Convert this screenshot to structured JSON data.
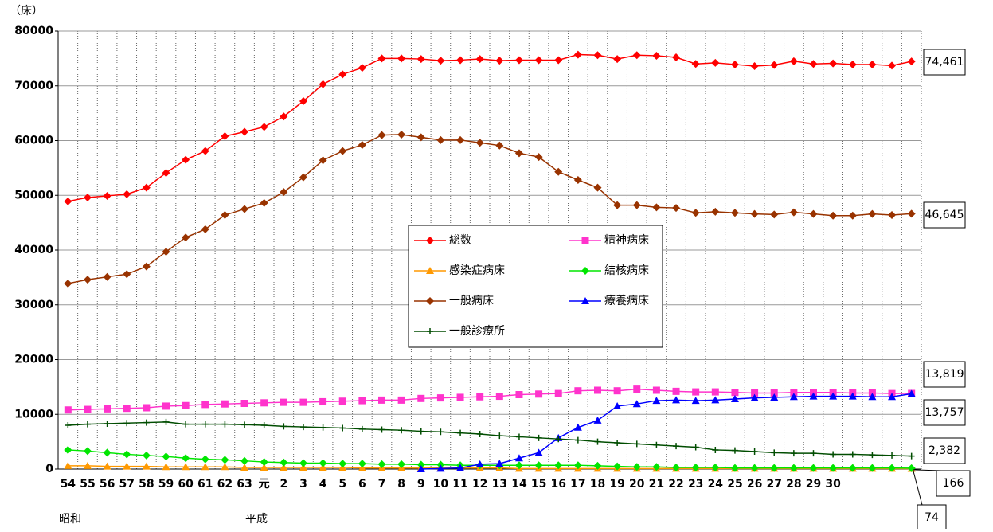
{
  "chart_data": {
    "type": "line",
    "y_label": "（床）",
    "era_labels": [
      "昭和",
      "平成"
    ],
    "categories": [
      "54",
      "55",
      "56",
      "57",
      "58",
      "59",
      "60",
      "61",
      "62",
      "63",
      "元",
      "2",
      "3",
      "4",
      "5",
      "6",
      "7",
      "8",
      "9",
      "10",
      "11",
      "12",
      "13",
      "14",
      "15",
      "16",
      "17",
      "18",
      "19",
      "20",
      "21",
      "22",
      "23",
      "24",
      "25",
      "26",
      "27",
      "28",
      "29",
      "30",
      null,
      null,
      null,
      null
    ],
    "ylim": [
      0,
      80000
    ],
    "yticks": [
      0,
      10000,
      20000,
      30000,
      40000,
      50000,
      60000,
      70000,
      80000
    ],
    "grid": true,
    "series": [
      {
        "name": "総数",
        "color": "#ff0000",
        "marker": "diamond",
        "end_label": "74,461",
        "values": [
          48900,
          49600,
          49900,
          50200,
          51400,
          54100,
          56500,
          58100,
          60800,
          61600,
          62500,
          64400,
          67200,
          70300,
          72100,
          73300,
          75000,
          75000,
          74900,
          74600,
          74700,
          74900,
          74600,
          74700,
          74700,
          74700,
          75700,
          75600,
          74900,
          75600,
          75500,
          75200,
          74000,
          74200,
          73900,
          73600,
          73800,
          74500,
          74000,
          74100,
          73900,
          73900,
          73700,
          74461
        ]
      },
      {
        "name": "精神病床",
        "color": "#ff33cc",
        "marker": "square",
        "end_label": "13,819",
        "values": [
          10800,
          10900,
          11000,
          11100,
          11200,
          11500,
          11600,
          11800,
          11900,
          12000,
          12100,
          12200,
          12200,
          12300,
          12400,
          12500,
          12600,
          12600,
          12900,
          13000,
          13100,
          13200,
          13300,
          13600,
          13700,
          13800,
          14300,
          14400,
          14300,
          14600,
          14400,
          14200,
          14100,
          14100,
          14000,
          13900,
          13900,
          14000,
          14000,
          14000,
          13900,
          13900,
          13800,
          13819
        ]
      },
      {
        "name": "感染症病床",
        "color": "#ff9900",
        "marker": "triangle",
        "end_label": "74",
        "values": [
          600,
          600,
          500,
          500,
          500,
          400,
          400,
          400,
          400,
          300,
          300,
          300,
          300,
          300,
          300,
          200,
          200,
          200,
          200,
          200,
          200,
          200,
          200,
          100,
          100,
          100,
          100,
          100,
          100,
          100,
          100,
          100,
          100,
          100,
          100,
          100,
          100,
          100,
          100,
          100,
          100,
          100,
          100,
          74
        ]
      },
      {
        "name": "結核病床",
        "color": "#00e600",
        "marker": "diamond",
        "end_label": "166",
        "values": [
          3500,
          3300,
          3000,
          2700,
          2500,
          2300,
          2000,
          1800,
          1700,
          1500,
          1300,
          1200,
          1100,
          1100,
          1000,
          1000,
          900,
          900,
          800,
          800,
          700,
          700,
          700,
          700,
          700,
          700,
          700,
          600,
          500,
          400,
          400,
          300,
          300,
          300,
          200,
          200,
          200,
          200,
          200,
          200,
          200,
          200,
          200,
          166
        ]
      },
      {
        "name": "一般病床",
        "color": "#993300",
        "marker": "diamond",
        "end_label": "46,645",
        "values": [
          33900,
          34600,
          35100,
          35600,
          37000,
          39700,
          42300,
          43800,
          46400,
          47500,
          48600,
          50600,
          53300,
          56400,
          58100,
          59200,
          61000,
          61100,
          60600,
          60100,
          60100,
          59600,
          59100,
          57700,
          57000,
          54300,
          52800,
          51400,
          48200,
          48200,
          47800,
          47700,
          46800,
          47000,
          46800,
          46600,
          46500,
          46900,
          46600,
          46300,
          46300,
          46600,
          46400,
          46645
        ]
      },
      {
        "name": "療養病床",
        "color": "#0000ff",
        "marker": "triangle",
        "end_label": "13,757",
        "values": [
          null,
          null,
          null,
          null,
          null,
          null,
          null,
          null,
          null,
          null,
          null,
          null,
          null,
          null,
          null,
          null,
          null,
          null,
          0,
          100,
          200,
          900,
          1000,
          2000,
          3000,
          5700,
          7600,
          8900,
          11500,
          11900,
          12500,
          12600,
          12500,
          12600,
          12800,
          13000,
          13100,
          13200,
          13300,
          13300,
          13300,
          13200,
          13200,
          13757
        ]
      },
      {
        "name": "一般診療所",
        "color": "#004d00",
        "marker": "plus",
        "end_label": "2,382",
        "values": [
          8000,
          8200,
          8300,
          8400,
          8500,
          8600,
          8200,
          8200,
          8200,
          8100,
          8000,
          7800,
          7700,
          7600,
          7500,
          7300,
          7200,
          7100,
          6900,
          6800,
          6600,
          6400,
          6100,
          5900,
          5700,
          5500,
          5300,
          5000,
          4800,
          4600,
          4400,
          4200,
          4000,
          3500,
          3400,
          3200,
          3000,
          2900,
          2900,
          2700,
          2700,
          2600,
          2500,
          2382
        ]
      }
    ]
  }
}
